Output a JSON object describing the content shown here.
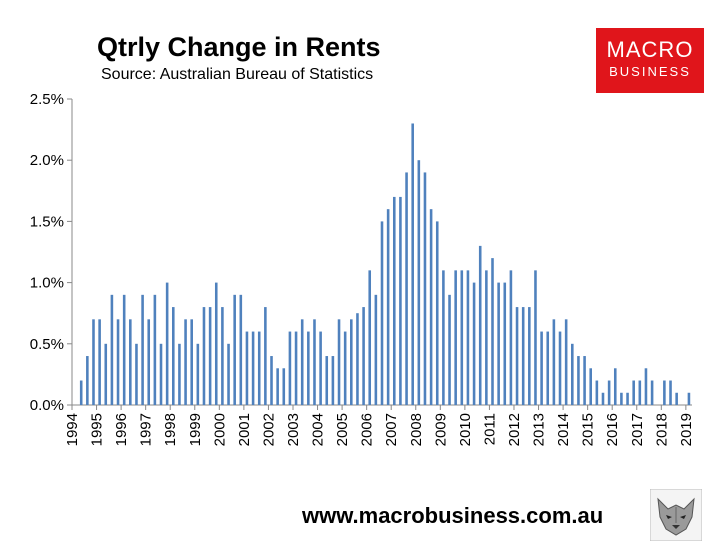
{
  "header": {
    "title": "Qtrly Change in Rents",
    "subtitle": "Source: Australian Bureau of Statistics"
  },
  "logo": {
    "line1": "MACRO",
    "line2": "BUSINESS",
    "color": "#e0151b"
  },
  "footer": {
    "url": "www.macrobusiness.com.au"
  },
  "badge_icon": "wolf-logo-icon",
  "chart_data": {
    "type": "bar",
    "title": "Qtrly Change in Rents",
    "subtitle": "Source: Australian Bureau of Statistics",
    "xlabel": "",
    "ylabel": "",
    "ylim": [
      0,
      0.025
    ],
    "yticks": [
      0,
      0.005,
      0.01,
      0.015,
      0.02,
      0.025
    ],
    "ytick_labels": [
      "0.0%",
      "0.5%",
      "1.0%",
      "1.5%",
      "2.0%",
      "2.5%"
    ],
    "xtick_labels": [
      "1994",
      "1995",
      "1996",
      "1997",
      "1998",
      "1999",
      "2000",
      "2001",
      "2002",
      "2003",
      "2004",
      "2005",
      "2006",
      "2007",
      "2008",
      "2009",
      "2010",
      "2011",
      "2012",
      "2013",
      "2014",
      "2015",
      "2016",
      "2017",
      "2018",
      "2019"
    ],
    "start": "1994 Q2",
    "frequency": "quarterly",
    "bar_color": "#4f81bd",
    "grid": false,
    "legend": "none",
    "values": [
      0.002,
      0.004,
      0.007,
      0.007,
      0.005,
      0.009,
      0.007,
      0.009,
      0.007,
      0.005,
      0.009,
      0.007,
      0.009,
      0.005,
      0.01,
      0.008,
      0.005,
      0.007,
      0.007,
      0.005,
      0.008,
      0.008,
      0.01,
      0.008,
      0.005,
      0.009,
      0.009,
      0.006,
      0.006,
      0.006,
      0.008,
      0.004,
      0.003,
      0.003,
      0.006,
      0.006,
      0.007,
      0.006,
      0.007,
      0.006,
      0.004,
      0.004,
      0.007,
      0.006,
      0.007,
      0.0075,
      0.008,
      0.011,
      0.009,
      0.015,
      0.016,
      0.017,
      0.017,
      0.019,
      0.023,
      0.02,
      0.019,
      0.016,
      0.015,
      0.011,
      0.009,
      0.011,
      0.011,
      0.011,
      0.01,
      0.013,
      0.011,
      0.012,
      0.01,
      0.01,
      0.011,
      0.008,
      0.008,
      0.008,
      0.011,
      0.006,
      0.006,
      0.007,
      0.006,
      0.007,
      0.005,
      0.004,
      0.004,
      0.003,
      0.002,
      0.001,
      0.002,
      0.003,
      0.001,
      0.001,
      0.002,
      0.002,
      0.003,
      0.002,
      0.0,
      0.002,
      0.002,
      0.001,
      0.0,
      0.001
    ]
  }
}
